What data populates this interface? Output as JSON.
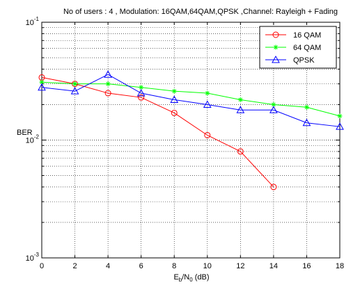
{
  "chart_data": {
    "type": "line",
    "title": "No of users : 4 , Modulation: 16QAM,64QAM,QPSK ,Channel: Rayleigh + Fading",
    "xlabel": {
      "main": "E",
      "sub1": "b",
      "mid": "/N",
      "sub2": "0",
      "tail": " (dB)"
    },
    "ylabel": "BER",
    "xlim": [
      0,
      18
    ],
    "ylim": [
      0.001,
      0.1
    ],
    "yscale": "log",
    "grid": true,
    "legend_position": "top-right",
    "xticks": [
      "0",
      "2",
      "4",
      "6",
      "8",
      "10",
      "12",
      "14",
      "16",
      "18"
    ],
    "yticks": [
      {
        "base": "10",
        "exp": "-3",
        "value": 0.001
      },
      {
        "base": "10",
        "exp": "-2",
        "value": 0.01
      },
      {
        "base": "10",
        "exp": "-1",
        "value": 0.1
      }
    ],
    "series": [
      {
        "name": "16 QAM",
        "color": "#ff0000",
        "marker": "circle",
        "x": [
          0,
          2,
          4,
          6,
          8,
          10,
          12,
          14
        ],
        "y": [
          0.034,
          0.03,
          0.025,
          0.023,
          0.017,
          0.011,
          0.008,
          0.004
        ]
      },
      {
        "name": "64 QAM",
        "color": "#00ff00",
        "marker": "star",
        "x": [
          0,
          2,
          4,
          6,
          8,
          10,
          12,
          14,
          16,
          18
        ],
        "y": [
          0.031,
          0.03,
          0.03,
          0.028,
          0.026,
          0.025,
          0.022,
          0.02,
          0.019,
          0.016
        ]
      },
      {
        "name": "QPSK",
        "color": "#0000ff",
        "marker": "triangle",
        "x": [
          0,
          2,
          4,
          6,
          8,
          10,
          12,
          14,
          16,
          18
        ],
        "y": [
          0.028,
          0.026,
          0.036,
          0.025,
          0.022,
          0.02,
          0.018,
          0.018,
          0.014,
          0.013
        ]
      }
    ]
  }
}
